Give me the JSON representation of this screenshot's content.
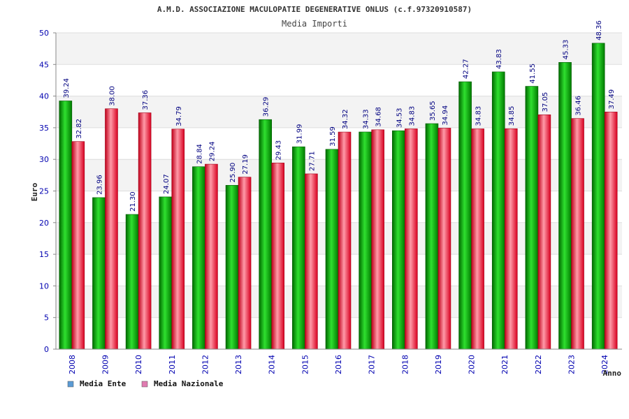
{
  "chart_data": {
    "type": "bar",
    "title": "A.M.D. ASSOCIAZIONE MACULOPATIE DEGENERATIVE ONLUS (c.f.97320910587)",
    "subtitle": "Media Importi",
    "xlabel": "Anno",
    "ylabel": "Euro",
    "ylim": [
      0,
      50
    ],
    "yticks": [
      0,
      5,
      10,
      15,
      20,
      25,
      30,
      35,
      40,
      45,
      50
    ],
    "grid": true,
    "legend_position": "bottom-left",
    "categories": [
      "2008",
      "2009",
      "2010",
      "2011",
      "2012",
      "2013",
      "2014",
      "2015",
      "2016",
      "2017",
      "2018",
      "2019",
      "2020",
      "2021",
      "2022",
      "2023",
      "2024"
    ],
    "series": [
      {
        "name": "Media Ente",
        "legend_color": "#5b9bd5",
        "bar_color": "#00a800",
        "values": [
          39.24,
          23.96,
          21.3,
          24.07,
          28.84,
          25.9,
          36.29,
          31.99,
          31.59,
          34.33,
          34.53,
          35.65,
          42.27,
          43.83,
          41.55,
          45.33,
          48.36
        ],
        "labels": [
          "39.24",
          "23.96",
          "21.30",
          "24.07",
          "28.84",
          "25.90",
          "36.29",
          "31.99",
          "31.59",
          "34.33",
          "34.53",
          "35.65",
          "42.27",
          "43.83",
          "41.55",
          "45.33",
          "48.36"
        ]
      },
      {
        "name": "Media Nazionale",
        "legend_color": "#e07bb0",
        "bar_color": "#e8102a",
        "values": [
          32.82,
          38.0,
          37.36,
          34.79,
          29.24,
          27.19,
          29.43,
          27.71,
          34.32,
          34.68,
          34.83,
          34.94,
          34.83,
          34.85,
          37.05,
          36.46,
          37.49
        ],
        "labels": [
          "32.82",
          "38.00",
          "37.36",
          "34.79",
          "29.24",
          "27.19",
          "29.43",
          "27.71",
          "34.32",
          "34.68",
          "34.83",
          "34.94",
          "34.83",
          "34.85",
          "37.05",
          "36.46",
          "37.49"
        ]
      }
    ]
  },
  "colors": {
    "axis_text": "#0000b0",
    "label_text": "#000080",
    "band_light": "#f3f3f3",
    "band_white": "#ffffff",
    "grid_line": "#dddddd"
  }
}
